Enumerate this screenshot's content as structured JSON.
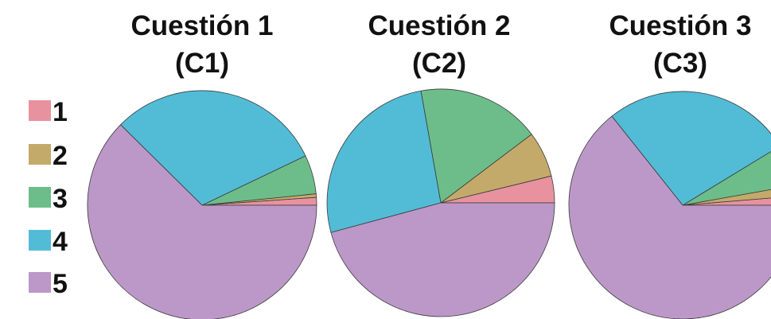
{
  "chart_data": {
    "type": "pie",
    "legend": {
      "position": "left",
      "entries": [
        {
          "label": "1",
          "color": "#e8929f"
        },
        {
          "label": "2",
          "color": "#c4aa6a"
        },
        {
          "label": "3",
          "color": "#6dbd8a"
        },
        {
          "label": "4",
          "color": "#52bcd6"
        },
        {
          "label": "5",
          "color": "#bc98c8"
        }
      ]
    },
    "pies": [
      {
        "title_line1": "Cuestión 1",
        "title_line2": "(C1)",
        "categories": [
          "1",
          "2",
          "3",
          "4",
          "5"
        ],
        "values": [
          1.1,
          0.5,
          5.5,
          30.5,
          62.4
        ]
      },
      {
        "title_line1": "Cuestión 2",
        "title_line2": "(C2)",
        "categories": [
          "1",
          "2",
          "3",
          "4",
          "5"
        ],
        "values": [
          3.8,
          6.5,
          17.5,
          26.4,
          45.8
        ]
      },
      {
        "title_line1": "Cuestión 3",
        "title_line2": "(C3)",
        "categories": [
          "1",
          "2",
          "3",
          "4",
          "5"
        ],
        "values": [
          1.3,
          1.5,
          5.9,
          27.0,
          64.3
        ]
      }
    ]
  }
}
